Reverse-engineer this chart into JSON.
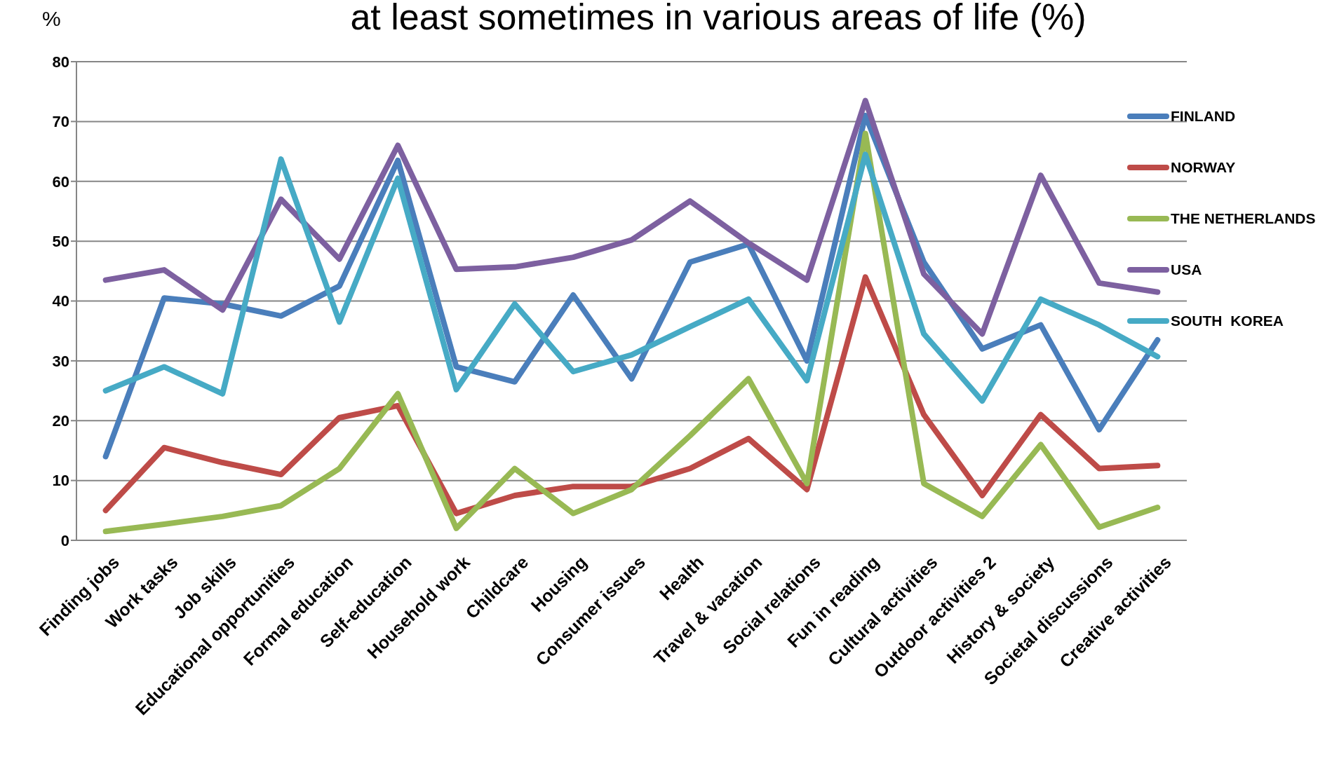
{
  "chart_data": {
    "type": "line",
    "title": "at least sometimes in various areas of life (%)",
    "ylabel": "%",
    "categories": [
      "Finding jobs",
      "Work tasks",
      "Job skills",
      "Educational opportunities",
      "Formal education",
      "Self-education",
      "Household work",
      "Childcare",
      "Housing",
      "Consumer issues",
      "Health",
      "Travel & vacation",
      "Social relations",
      "Fun in reading",
      "Cultural activities",
      "Outdoor activities 2",
      "History & society",
      "Societal discussions",
      "Creative activities"
    ],
    "series": [
      {
        "name": "FINLAND",
        "color": "#4a7ebb",
        "values": [
          14,
          40.5,
          39.5,
          37.5,
          42.5,
          63.5,
          29,
          26.5,
          41,
          27,
          46.5,
          49.5,
          30,
          71,
          46.5,
          32,
          36,
          18.5,
          33.5
        ]
      },
      {
        "name": "NORWAY",
        "color": "#be4b48",
        "values": [
          5,
          15.5,
          13,
          11,
          20.5,
          22.5,
          4.5,
          7.5,
          9,
          9,
          12,
          17,
          8.5,
          44,
          21,
          7.5,
          21,
          12,
          12.5
        ]
      },
      {
        "name": "THE NETHERLANDS",
        "color": "#98b954",
        "values": [
          1.5,
          2.7,
          4,
          5.8,
          12,
          24.5,
          2,
          12,
          4.5,
          8.5,
          17.5,
          27,
          9.5,
          68,
          9.5,
          4,
          16,
          2.2,
          5.5
        ]
      },
      {
        "name": "USA",
        "color": "#7d60a0",
        "values": [
          43.5,
          45.2,
          38.5,
          57,
          47,
          66,
          45.3,
          45.7,
          47.3,
          50.2,
          56.7,
          49.7,
          43.5,
          73.5,
          44.5,
          34.5,
          61,
          43,
          41.5
        ]
      },
      {
        "name": "SOUTH  KOREA",
        "color": "#46aac5",
        "values": [
          25,
          29,
          24.5,
          63.7,
          36.5,
          60.5,
          25.2,
          39.5,
          28.2,
          31,
          35.7,
          40.3,
          26.7,
          64.5,
          34.5,
          23.3,
          40.3,
          36,
          30.7
        ]
      }
    ],
    "ylim": [
      0,
      80
    ],
    "yticks": [
      0,
      10,
      20,
      30,
      40,
      50,
      60,
      70,
      80
    ],
    "grid": "y",
    "legend": "right",
    "marker": "none",
    "line_style": "solid"
  }
}
